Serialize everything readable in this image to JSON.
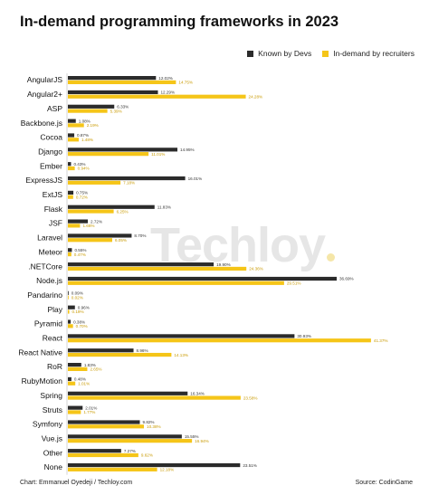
{
  "title": "In-demand programming frameworks in 2023",
  "legend": [
    {
      "label": "Known by Devs",
      "color": "#2b2b2b"
    },
    {
      "label": "In-demand by recruiters",
      "color": "#f5c518"
    }
  ],
  "watermark": "Techloy",
  "footer": {
    "credit": "Chart: Emmanuel Oyedeji / Techloy.com",
    "source": "Source: CodinGame"
  },
  "chart_data": {
    "type": "bar",
    "orientation": "horizontal",
    "categories": [
      "AngularJS",
      "Angular2+",
      "ASP",
      "Backbone.js",
      "Cocoa",
      "Django",
      "Ember",
      "ExpressJS",
      "ExtJS",
      "Flask",
      "JSF",
      "Laravel",
      "Meteor",
      ".NETCore",
      "Node.js",
      "Pandarino",
      "Play",
      "Pyramid",
      "React",
      "React Native",
      "RoR",
      "RubyMotion",
      "Spring",
      "Struts",
      "Symfony",
      "Vue.js",
      "Other",
      "None"
    ],
    "series": [
      {
        "name": "Known by Devs",
        "color": "#2b2b2b",
        "values": [
          12.02,
          12.29,
          6.33,
          1.08,
          0.87,
          14.95,
          0.43,
          16.01,
          0.75,
          11.83,
          2.72,
          8.7,
          0.55,
          19.9,
          36.69,
          0.09,
          0.96,
          0.38,
          30.93,
          8.96,
          1.83,
          0.48,
          16.34,
          2.01,
          9.82,
          15.55,
          7.27,
          23.51
        ],
        "labels": [
          "12.02%",
          "12.29%",
          "6.33%",
          "1.08%",
          "0.87%",
          "14.95%",
          "0.43%",
          "16.01%",
          "0.75%",
          "11.83%",
          "2.72%",
          "8.70%",
          "0.55%",
          "19.90%",
          "36.69%",
          "0.09%",
          "0.96%",
          "0.38%",
          "30.93%",
          "8.96%",
          "1.83%",
          "0.48%",
          "16.34%",
          "2.01%",
          "9.82%",
          "15.55%",
          "7.27%",
          "23.51%"
        ]
      },
      {
        "name": "In-demand by recruiters",
        "color": "#f5c518",
        "values": [
          14.75,
          24.28,
          5.39,
          2.19,
          1.48,
          11.01,
          0.94,
          7.18,
          0.72,
          6.25,
          1.66,
          6.05,
          0.47,
          24.36,
          29.51,
          0.02,
          0.19,
          0.7,
          41.37,
          14.13,
          2.65,
          1.01,
          23.58,
          1.77,
          10.38,
          16.94,
          9.62,
          12.18
        ],
        "labels": [
          "14.75%",
          "24.28%",
          "5.39%",
          "2.19%",
          "1.48%",
          "11.01%",
          "0.94%",
          "7.18%",
          "0.72%",
          "6.25%",
          "1.66%",
          "6.05%",
          "0.47%",
          "24.36%",
          "29.51%",
          "0.02%",
          "0.19%",
          "0.70%",
          "41.37%",
          "14.13%",
          "2.65%",
          "1.01%",
          "23.58%",
          "1.77%",
          "10.38%",
          "16.94%",
          "9.62%",
          "12.18%"
        ]
      }
    ],
    "xlim": [
      0,
      42
    ],
    "grid": false,
    "legend_position": "top-right"
  }
}
